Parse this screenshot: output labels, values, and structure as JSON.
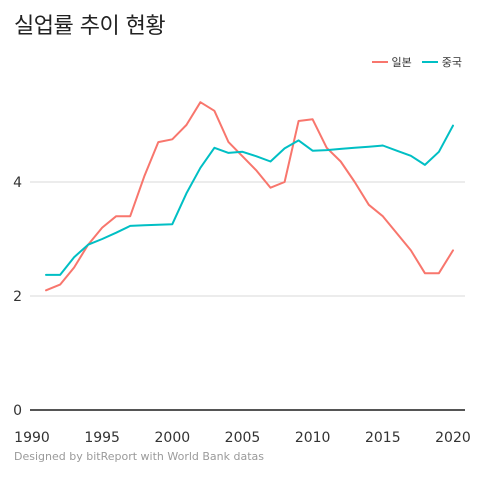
{
  "chart_data": {
    "type": "line",
    "title": "실업률 추이 현황",
    "xlabel": "",
    "ylabel": "",
    "x": [
      1991,
      1992,
      1993,
      1994,
      1995,
      1996,
      1997,
      1998,
      1999,
      2000,
      2001,
      2002,
      2003,
      2004,
      2005,
      2006,
      2007,
      2008,
      2009,
      2010,
      2011,
      2012,
      2013,
      2014,
      2015,
      2016,
      2017,
      2018,
      2019,
      2020
    ],
    "xlim": [
      1990,
      2021
    ],
    "ylim": [
      0,
      6
    ],
    "xticks": [
      1990,
      1995,
      2000,
      2005,
      2010,
      2015,
      2020
    ],
    "yticks": [
      0,
      2,
      4
    ],
    "grid": "horizontal",
    "legend_position": "top-right",
    "series": [
      {
        "name": "일본",
        "color": "#F8766D",
        "values": [
          2.1,
          2.2,
          2.5,
          2.9,
          3.2,
          3.4,
          3.4,
          4.1,
          4.7,
          4.75,
          5.0,
          5.4,
          5.25,
          4.7,
          4.45,
          4.2,
          3.9,
          4.0,
          5.07,
          5.1,
          4.6,
          4.36,
          4.0,
          3.6,
          3.4,
          3.1,
          2.8,
          2.4,
          2.4,
          2.8
        ]
      },
      {
        "name": "중국",
        "color": "#00BFC4",
        "values": [
          2.37,
          2.37,
          2.68,
          2.9,
          3.0,
          3.11,
          3.23,
          3.24,
          3.25,
          3.26,
          3.8,
          4.25,
          4.6,
          4.51,
          4.53,
          4.45,
          4.36,
          4.59,
          4.73,
          4.55,
          4.56,
          4.58,
          4.6,
          4.62,
          4.64,
          4.55,
          4.46,
          4.3,
          4.53,
          4.99
        ]
      }
    ]
  },
  "caption": "Designed by bitReport with World Bank datas"
}
